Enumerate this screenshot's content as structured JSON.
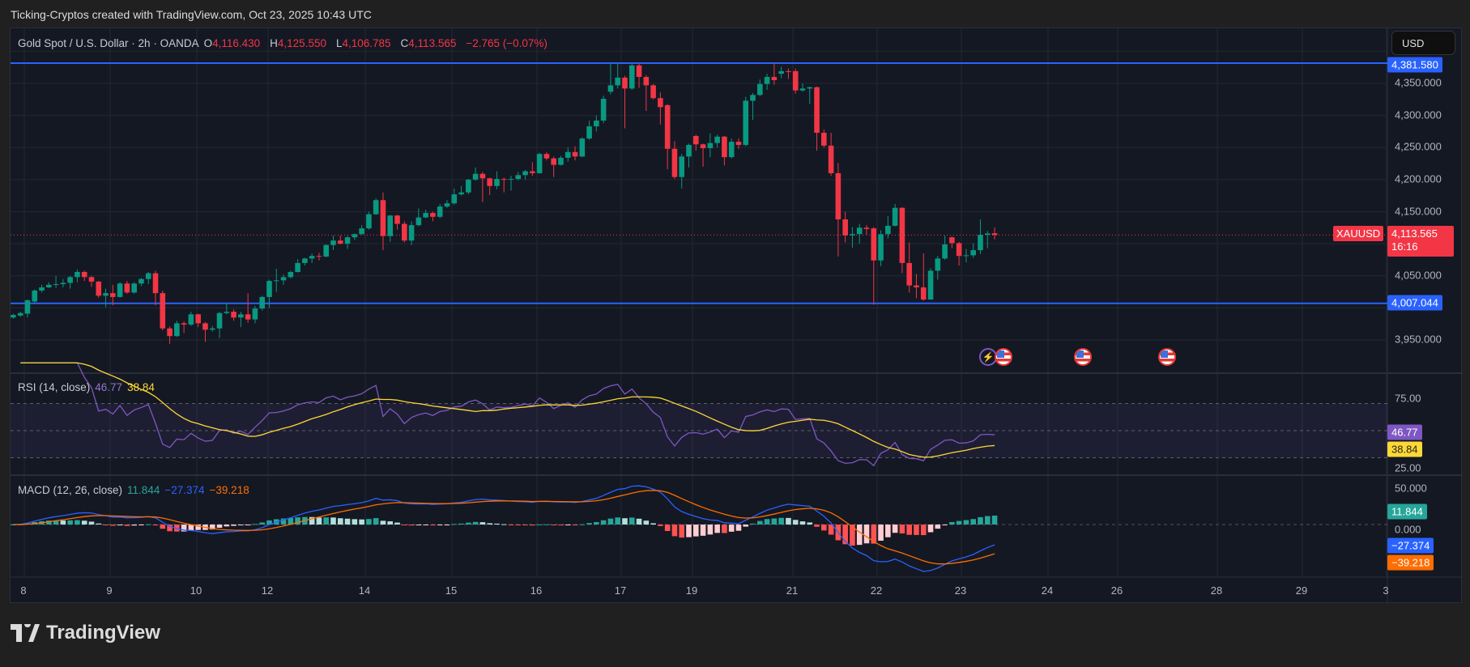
{
  "header": {
    "title": "Ticking-Cryptos created with TradingView.com, Oct 23, 2025 10:43 UTC"
  },
  "legend": {
    "symbol": "Gold Spot / U.S. Dollar · 2h · OANDA",
    "o_label": "O",
    "o": "4,116.430",
    "h_label": "H",
    "h": "4,125.550",
    "l_label": "L",
    "l": "4,106.785",
    "c_label": "C",
    "c": "4,113.565",
    "change": "−2.765 (−0.07%)"
  },
  "currency_button": "USD",
  "price_axis": {
    "ticks": [
      "4,350.000",
      "4,300.000",
      "4,250.000",
      "4,200.000",
      "4,150.000",
      "4,050.000",
      "3,950.000"
    ],
    "tick_values": [
      4350,
      4300,
      4250,
      4200,
      4150,
      4050,
      3950
    ]
  },
  "levels": [
    {
      "value": 4381.58,
      "label": "4,381.580",
      "color": "#2962ff"
    },
    {
      "value": 4007.044,
      "label": "4,007.044",
      "color": "#2962ff"
    }
  ],
  "last_price": {
    "symbol": "XAUUSD",
    "price": "4,113.565",
    "value": 4113.565,
    "countdown": "16:16",
    "color": "#f23645"
  },
  "rsi": {
    "title": "RSI (14, close)",
    "value": "46.77",
    "ma": "38.84",
    "ticks": [
      "75.00",
      "25.00"
    ],
    "line_color": "#7e57c2",
    "ma_color": "#fdd835",
    "bands": [
      70,
      50,
      30
    ]
  },
  "macd": {
    "title": "MACD (12, 26, close)",
    "hist": "11.844",
    "macd": "−27.374",
    "signal": "−39.218",
    "ticks": [
      "50.000",
      "0.000"
    ],
    "macd_color": "#2962ff",
    "signal_color": "#ff6d00"
  },
  "time_axis": [
    "8",
    "9",
    "10",
    "12",
    "14",
    "15",
    "16",
    "17",
    "19",
    "21",
    "22",
    "23",
    "24",
    "26",
    "28",
    "29",
    "3"
  ],
  "events": [
    {
      "icon": "lightning-icon"
    },
    {
      "icon": "us-flag-icon"
    },
    {
      "icon": "us-flag-icon"
    },
    {
      "icon": "us-flag-icon"
    }
  ],
  "logo": {
    "text": "TradingView"
  },
  "colors": {
    "up": "#089981",
    "down": "#f23645",
    "background": "#141823"
  },
  "chart_data": {
    "type": "candlestick",
    "timeframe": "2h",
    "ylim": [
      3920,
      4400
    ],
    "grid": true,
    "ohlc": [
      [
        3985,
        3991,
        3983,
        3989
      ],
      [
        3988,
        3994,
        3986,
        3992
      ],
      [
        3991,
        4013,
        3985,
        4012
      ],
      [
        4010,
        4029,
        4008,
        4027
      ],
      [
        4027,
        4036,
        4024,
        4032
      ],
      [
        4032,
        4040,
        4031,
        4036
      ],
      [
        4036,
        4050,
        4031,
        4037
      ],
      [
        4037,
        4045,
        4032,
        4039
      ],
      [
        4039,
        4050,
        4030,
        4048
      ],
      [
        4048,
        4060,
        4040,
        4056
      ],
      [
        4056,
        4058,
        4042,
        4048
      ],
      [
        4048,
        4050,
        4033,
        4041
      ],
      [
        4041,
        4042,
        4016,
        4019
      ],
      [
        4019,
        4030,
        4001,
        4023
      ],
      [
        4023,
        4036,
        4004,
        4017
      ],
      [
        4017,
        4040,
        4016,
        4038
      ],
      [
        4038,
        4042,
        4022,
        4024
      ],
      [
        4024,
        4040,
        4022,
        4038
      ],
      [
        4038,
        4047,
        4034,
        4045
      ],
      [
        4045,
        4056,
        4037,
        4054
      ],
      [
        4054,
        4058,
        4004,
        4023
      ],
      [
        4023,
        4027,
        3965,
        3968
      ],
      [
        3968,
        3971,
        3944,
        3956
      ],
      [
        3956,
        3980,
        3955,
        3976
      ],
      [
        3976,
        3979,
        3961,
        3974
      ],
      [
        3974,
        3994,
        3972,
        3990
      ],
      [
        3990,
        3991,
        3970,
        3976
      ],
      [
        3976,
        3978,
        3947,
        3966
      ],
      [
        3966,
        3972,
        3963,
        3968
      ],
      [
        3968,
        3994,
        3953,
        3992
      ],
      [
        3992,
        4008,
        3990,
        3994
      ],
      [
        3994,
        3998,
        3980,
        3985
      ],
      [
        3985,
        3994,
        3970,
        3990
      ],
      [
        3990,
        4023,
        3977,
        3982
      ],
      [
        3982,
        4003,
        3976,
        3999
      ],
      [
        3999,
        4019,
        3996,
        4017
      ],
      [
        4017,
        4044,
        4000,
        4042
      ],
      [
        4042,
        4061,
        4025,
        4043
      ],
      [
        4043,
        4052,
        4036,
        4048
      ],
      [
        4048,
        4058,
        4046,
        4056
      ],
      [
        4056,
        4076,
        4055,
        4070
      ],
      [
        4070,
        4078,
        4066,
        4077
      ],
      [
        4077,
        4085,
        4070,
        4081
      ],
      [
        4081,
        4086,
        4074,
        4080
      ],
      [
        4080,
        4099,
        4079,
        4098
      ],
      [
        4098,
        4113,
        4090,
        4105
      ],
      [
        4105,
        4113,
        4099,
        4100
      ],
      [
        4100,
        4112,
        4092,
        4110
      ],
      [
        4110,
        4116,
        4106,
        4115
      ],
      [
        4115,
        4129,
        4114,
        4124
      ],
      [
        4124,
        4150,
        4122,
        4146
      ],
      [
        4146,
        4171,
        4145,
        4168
      ],
      [
        4168,
        4180,
        4090,
        4112
      ],
      [
        4112,
        4145,
        4103,
        4144
      ],
      [
        4144,
        4145,
        4122,
        4131
      ],
      [
        4131,
        4135,
        4102,
        4105
      ],
      [
        4105,
        4135,
        4098,
        4129
      ],
      [
        4129,
        4155,
        4127,
        4141
      ],
      [
        4141,
        4153,
        4140,
        4148
      ],
      [
        4148,
        4150,
        4135,
        4142
      ],
      [
        4142,
        4162,
        4140,
        4158
      ],
      [
        4158,
        4168,
        4156,
        4163
      ],
      [
        4163,
        4186,
        4161,
        4177
      ],
      [
        4177,
        4190,
        4175,
        4180
      ],
      [
        4180,
        4201,
        4177,
        4200
      ],
      [
        4200,
        4219,
        4198,
        4209
      ],
      [
        4209,
        4212,
        4165,
        4202
      ],
      [
        4202,
        4203,
        4176,
        4190
      ],
      [
        4190,
        4213,
        4185,
        4201
      ],
      [
        4201,
        4203,
        4180,
        4200
      ],
      [
        4200,
        4206,
        4183,
        4201
      ],
      [
        4201,
        4212,
        4199,
        4207
      ],
      [
        4207,
        4215,
        4200,
        4213
      ],
      [
        4213,
        4227,
        4206,
        4210
      ],
      [
        4210,
        4242,
        4209,
        4240
      ],
      [
        4240,
        4243,
        4230,
        4233
      ],
      [
        4233,
        4236,
        4204,
        4223
      ],
      [
        4223,
        4237,
        4222,
        4234
      ],
      [
        4234,
        4250,
        4228,
        4243
      ],
      [
        4243,
        4252,
        4230,
        4236
      ],
      [
        4236,
        4266,
        4235,
        4264
      ],
      [
        4264,
        4292,
        4262,
        4283
      ],
      [
        4283,
        4300,
        4275,
        4292
      ],
      [
        4292,
        4331,
        4288,
        4326
      ],
      [
        4337,
        4382,
        4333,
        4347
      ],
      [
        4347,
        4380,
        4342,
        4359
      ],
      [
        4359,
        4362,
        4280,
        4342
      ],
      [
        4342,
        4380,
        4340,
        4378
      ],
      [
        4378,
        4381,
        4343,
        4360
      ],
      [
        4360,
        4363,
        4307,
        4347
      ],
      [
        4347,
        4349,
        4325,
        4327
      ],
      [
        4327,
        4336,
        4286,
        4313
      ],
      [
        4316,
        4318,
        4216,
        4248
      ],
      [
        4248,
        4260,
        4201,
        4204
      ],
      [
        4204,
        4240,
        4186,
        4236
      ],
      [
        4236,
        4256,
        4219,
        4254
      ],
      [
        4268,
        4270,
        4245,
        4255
      ],
      [
        4255,
        4256,
        4220,
        4249
      ],
      [
        4249,
        4272,
        4235,
        4257
      ],
      [
        4257,
        4270,
        4250,
        4267
      ],
      [
        4267,
        4268,
        4222,
        4235
      ],
      [
        4235,
        4264,
        4233,
        4259
      ],
      [
        4259,
        4264,
        4248,
        4254
      ],
      [
        4254,
        4329,
        4252,
        4323
      ],
      [
        4323,
        4335,
        4293,
        4332
      ],
      [
        4332,
        4356,
        4330,
        4349
      ],
      [
        4349,
        4365,
        4340,
        4360
      ],
      [
        4360,
        4382,
        4348,
        4355
      ],
      [
        4365,
        4376,
        4358,
        4369
      ],
      [
        4369,
        4373,
        4357,
        4368
      ],
      [
        4369,
        4373,
        4334,
        4339
      ],
      [
        4339,
        4350,
        4337,
        4342
      ],
      [
        4342,
        4345,
        4318,
        4344
      ],
      [
        4344,
        4345,
        4245,
        4273
      ],
      [
        4273,
        4278,
        4250,
        4253
      ],
      [
        4253,
        4273,
        4206,
        4210
      ],
      [
        4210,
        4226,
        4080,
        4138
      ],
      [
        4138,
        4150,
        4102,
        4113
      ],
      [
        4113,
        4126,
        4094,
        4115
      ],
      [
        4115,
        4131,
        4100,
        4125
      ],
      [
        4125,
        4129,
        4114,
        4123
      ],
      [
        4124,
        4126,
        4005,
        4074
      ],
      [
        4074,
        4121,
        4065,
        4115
      ],
      [
        4115,
        4143,
        4108,
        4128
      ],
      [
        4128,
        4162,
        4127,
        4156
      ],
      [
        4156,
        4157,
        4054,
        4070
      ],
      [
        4070,
        4102,
        4024,
        4035
      ],
      [
        4035,
        4053,
        4015,
        4032
      ],
      [
        4032,
        4085,
        4011,
        4013
      ],
      [
        4013,
        4062,
        4013,
        4058
      ],
      [
        4058,
        4081,
        4044,
        4077
      ],
      [
        4077,
        4113,
        4075,
        4099
      ],
      [
        4110,
        4111,
        4093,
        4101
      ],
      [
        4101,
        4103,
        4066,
        4081
      ],
      [
        4081,
        4092,
        4071,
        4082
      ],
      [
        4082,
        4101,
        4078,
        4090
      ],
      [
        4090,
        4138,
        4084,
        4114
      ],
      [
        4114,
        4120,
        4093,
        4116
      ],
      [
        4116.43,
        4125.55,
        4106.785,
        4113.565
      ]
    ]
  }
}
